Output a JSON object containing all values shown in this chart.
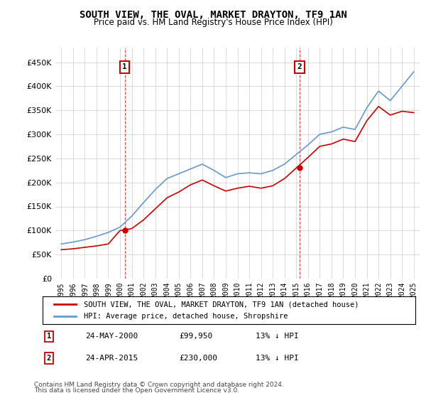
{
  "title": "SOUTH VIEW, THE OVAL, MARKET DRAYTON, TF9 1AN",
  "subtitle": "Price paid vs. HM Land Registry's House Price Index (HPI)",
  "annotation1": {
    "label": "1",
    "date": "24-MAY-2000",
    "price": "£99,950",
    "note": "13% ↓ HPI",
    "x_year": 2000.4,
    "y_val": 99950
  },
  "annotation2": {
    "label": "2",
    "date": "24-APR-2015",
    "price": "£230,000",
    "note": "13% ↓ HPI",
    "x_year": 2015.3,
    "y_val": 230000
  },
  "legend_label1": "SOUTH VIEW, THE OVAL, MARKET DRAYTON, TF9 1AN (detached house)",
  "legend_label2": "HPI: Average price, detached house, Shropshire",
  "footer_line1": "Contains HM Land Registry data © Crown copyright and database right 2024.",
  "footer_line2": "This data is licensed under the Open Government Licence v3.0.",
  "table_row1": [
    "1",
    "24-MAY-2000",
    "£99,950",
    "13% ↓ HPI"
  ],
  "table_row2": [
    "2",
    "24-APR-2015",
    "£230,000",
    "13% ↓ HPI"
  ],
  "line_color_red": "#cc0000",
  "line_color_blue": "#6699cc",
  "background_color": "#ffffff",
  "grid_color": "#cccccc",
  "ylim": [
    0,
    480000
  ],
  "yticks": [
    0,
    50000,
    100000,
    150000,
    200000,
    250000,
    300000,
    350000,
    400000,
    450000
  ],
  "ytick_labels": [
    "£0",
    "£50K",
    "£100K",
    "£150K",
    "£200K",
    "£250K",
    "£300K",
    "£350K",
    "£400K",
    "£450K"
  ],
  "xlim_start": 1994.5,
  "xlim_end": 2025.5,
  "hpi_years": [
    1995,
    1996,
    1997,
    1998,
    1999,
    2000,
    2001,
    2002,
    2003,
    2004,
    2005,
    2006,
    2007,
    2008,
    2009,
    2010,
    2011,
    2012,
    2013,
    2014,
    2015,
    2016,
    2017,
    2018,
    2019,
    2020,
    2021,
    2022,
    2023,
    2024,
    2025
  ],
  "hpi_values": [
    72000,
    76000,
    81000,
    88000,
    96000,
    107000,
    130000,
    158000,
    185000,
    208000,
    218000,
    228000,
    238000,
    225000,
    210000,
    218000,
    220000,
    218000,
    225000,
    238000,
    258000,
    278000,
    300000,
    305000,
    315000,
    310000,
    355000,
    390000,
    370000,
    400000,
    430000
  ],
  "price_paid_years": [
    1995.0,
    2000.4,
    2015.3
  ],
  "price_paid_values": [
    60000,
    99950,
    230000
  ],
  "red_line_years": [
    1995,
    1996,
    1997,
    1998,
    1999,
    2000,
    2001,
    2002,
    2003,
    2004,
    2005,
    2006,
    2007,
    2008,
    2009,
    2010,
    2011,
    2012,
    2013,
    2014,
    2015,
    2016,
    2017,
    2018,
    2019,
    2020,
    2021,
    2022,
    2023,
    2024,
    2025
  ],
  "red_line_values": [
    60000,
    62000,
    65000,
    68000,
    72000,
    99950,
    104000,
    122000,
    145000,
    168000,
    180000,
    195000,
    205000,
    193000,
    182000,
    188000,
    192000,
    188000,
    193000,
    208000,
    230000,
    252000,
    275000,
    280000,
    290000,
    285000,
    328000,
    358000,
    340000,
    348000,
    345000
  ]
}
